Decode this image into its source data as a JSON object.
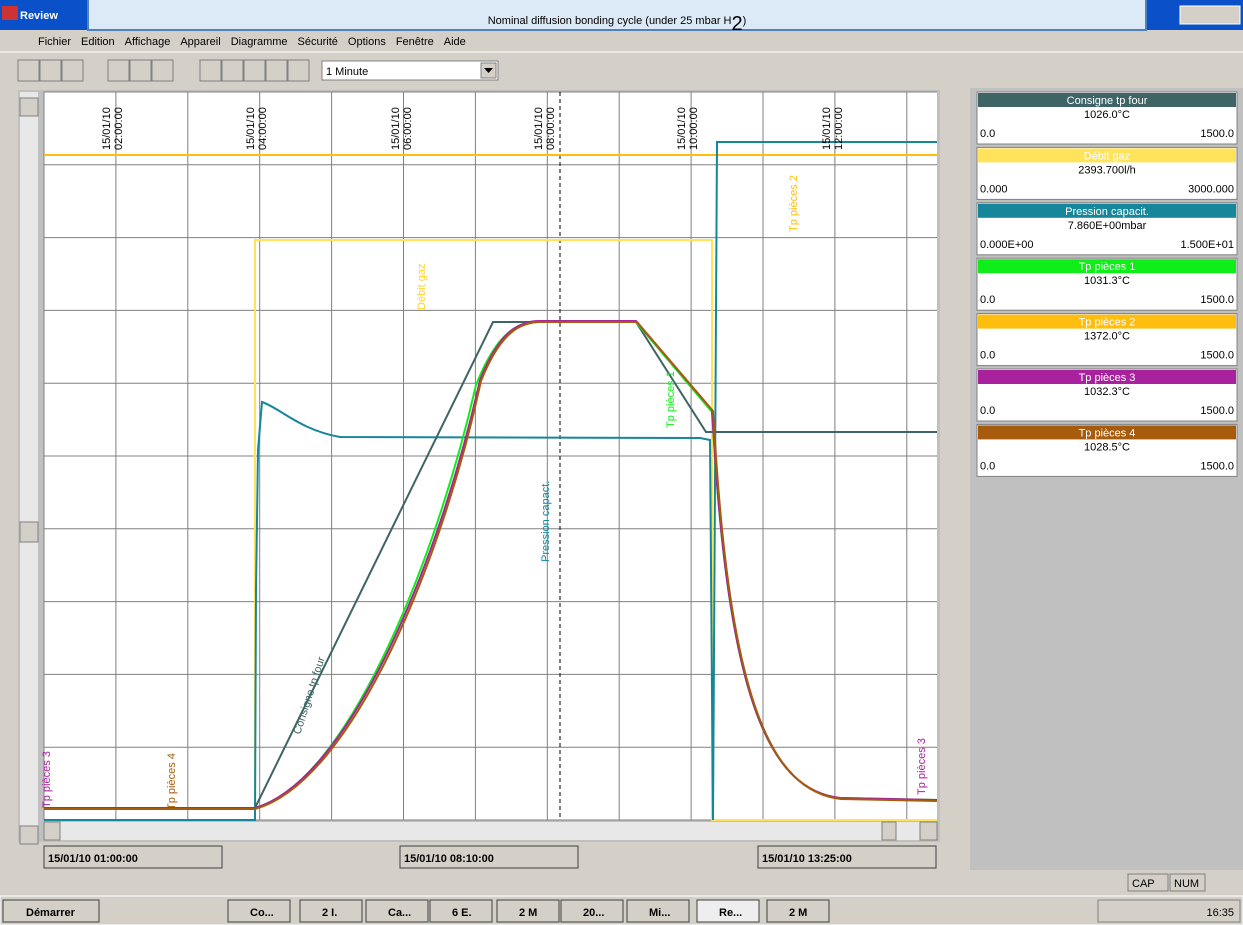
{
  "title": {
    "main": "Nominal diffusion bonding cycle (under 25 mbar H",
    "sub": "2",
    "end": ")"
  },
  "window": {
    "app": "Review"
  },
  "menu": [
    "Fichier",
    "Edition",
    "Affichage",
    "Appareil",
    "Diagramme",
    "Sécurité",
    "Options",
    "Fenêtre",
    "Aide"
  ],
  "toolbar": {
    "interval": "1 Minute"
  },
  "chart": {
    "top_times": [
      [
        "15/01/10",
        "02:00:00"
      ],
      [
        "15/01/10",
        "04:00:00"
      ],
      [
        "15/01/10",
        "06:00:00"
      ],
      [
        "15/01/10",
        "08:00:00"
      ],
      [
        "15/01/10",
        "10:00:00"
      ],
      [
        "15/01/10",
        "12:00:00"
      ]
    ],
    "bottom_times": [
      "15/01/10 01:00:00",
      "15/01/10 08:10:00",
      "15/01/10 13:25:00"
    ],
    "trace_labels": [
      "Tp pièces 3",
      "Tp pièces 4",
      "Consigne tp four",
      "Débit gaz",
      "Pression capact.",
      "Tp pièces 1",
      "Tp pièces 2",
      "Tp pièces 3"
    ]
  },
  "legend": [
    {
      "name": "Consigne tp four",
      "value": "1026.0°C",
      "min": "0.0",
      "max": "1500.0",
      "color": "#3f6465"
    },
    {
      "name": "Débit gaz",
      "value": "2393.700l/h",
      "min": "0.000",
      "max": "3000.000",
      "color": "#ffe35a"
    },
    {
      "name": "Pression capacit.",
      "value": "7.860E+00mbar",
      "min": "0.000E+00",
      "max": "1.500E+01",
      "color": "#16869a"
    },
    {
      "name": "Tp pièces 1",
      "value": "1031.3°C",
      "min": "0.0",
      "max": "1500.0",
      "color": "#10ee1a"
    },
    {
      "name": "Tp pièces 2",
      "value": "1372.0°C",
      "min": "0.0",
      "max": "1500.0",
      "color": "#ffbd0d"
    },
    {
      "name": "Tp pièces 3",
      "value": "1032.3°C",
      "min": "0.0",
      "max": "1500.0",
      "color": "#a8229e"
    },
    {
      "name": "Tp pièces 4",
      "value": "1028.5°C",
      "min": "0.0",
      "max": "1500.0",
      "color": "#a65c0c"
    }
  ],
  "status": [
    "CAP",
    "NUM"
  ],
  "taskbar": {
    "start": "Démarrer",
    "items": [
      "Co...",
      "2 I.",
      "Ca...",
      "6 E.",
      "2 M",
      "20...",
      "Mi...",
      "Re...",
      "2 M"
    ],
    "clock": "16:35"
  }
}
